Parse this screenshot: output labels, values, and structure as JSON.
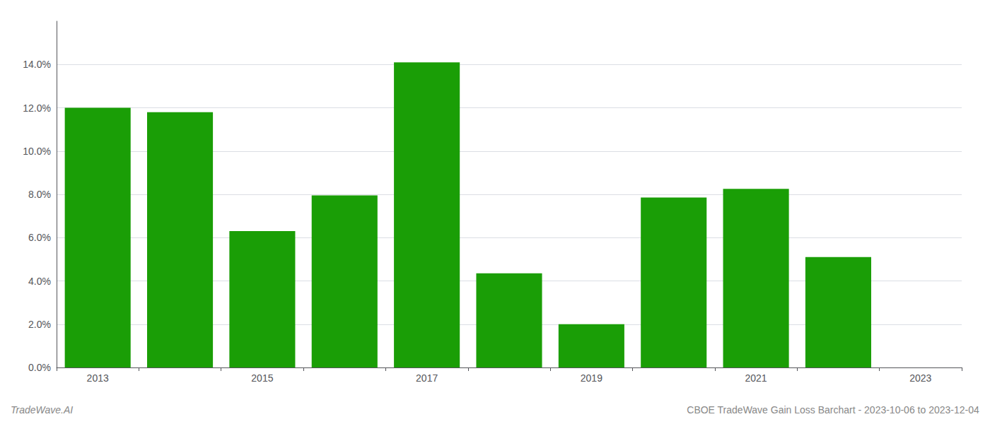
{
  "chart_data": {
    "type": "bar",
    "title": "CBOE TradeWave Gain Loss Barchart - 2023-10-06 to 2023-12-04",
    "annotations": [
      "TradeWave.AI"
    ],
    "categories": [
      "2013",
      null,
      "2015",
      null,
      "2017",
      null,
      "2019",
      null,
      "2021",
      null,
      "2023"
    ],
    "values": [
      0.12,
      0.118,
      0.063,
      0.0795,
      0.141,
      0.0435,
      0.02,
      0.0785,
      0.0825,
      0.051,
      null
    ],
    "color": "#1a9e06",
    "ylim": [
      0,
      0.16
    ],
    "yticks": [
      {
        "value": 0.0,
        "label": "0.0%"
      },
      {
        "value": 0.02,
        "label": "2.0%"
      },
      {
        "value": 0.04,
        "label": "4.0%"
      },
      {
        "value": 0.06,
        "label": "6.0%"
      },
      {
        "value": 0.08,
        "label": "8.0%"
      },
      {
        "value": 0.1,
        "label": "10.0%"
      },
      {
        "value": 0.12,
        "label": "12.0%"
      },
      {
        "value": 0.14,
        "label": "14.0%"
      }
    ],
    "grid": true
  }
}
